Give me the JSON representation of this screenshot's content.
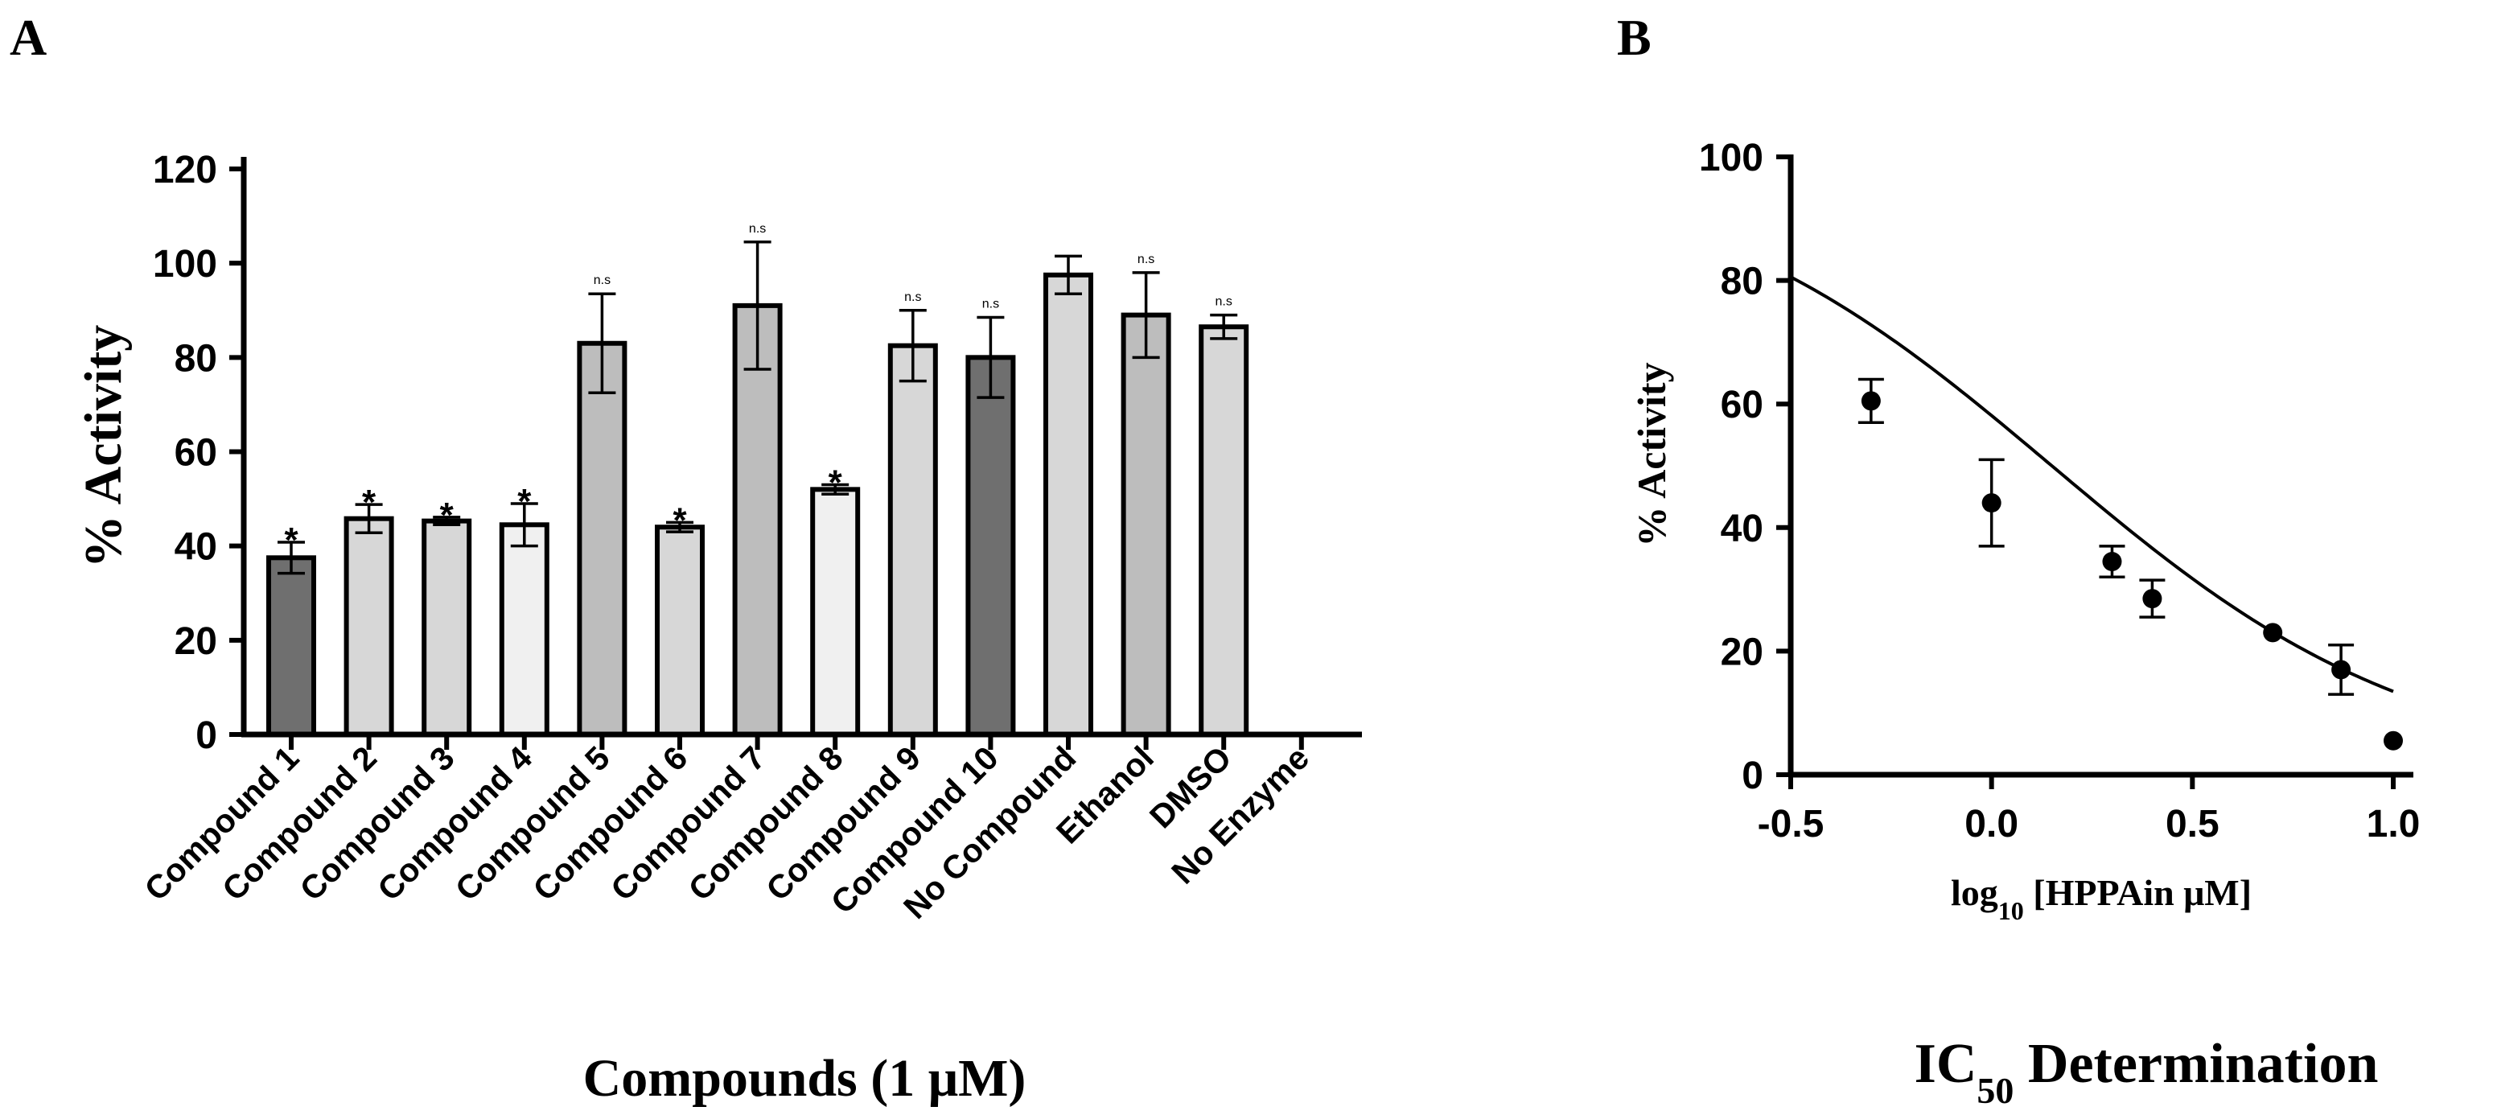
{
  "chart_data": [
    {
      "panel": "A",
      "type": "bar",
      "title": "",
      "xlabel": "Compounds (1 μM)",
      "ylabel": "% Activity",
      "ylim": [
        0,
        120
      ],
      "yticks": [
        0,
        20,
        40,
        60,
        80,
        100,
        120
      ],
      "categories": [
        "Compound 1",
        "Compound 2",
        "Compound 3",
        "Compound 4",
        "Compound 5",
        "Compound 6",
        "Compound 7",
        "Compound 8",
        "Compound 9",
        "Compound 10",
        "No Compound",
        "Ethanol",
        "DMSO",
        "No Enzyme"
      ],
      "values": [
        37.5,
        45.8,
        45.3,
        44.5,
        83,
        44,
        91,
        52,
        82.5,
        80,
        97.5,
        89,
        86.5,
        0
      ],
      "errors": [
        3.3,
        3,
        0.8,
        4.5,
        10.5,
        1,
        13.5,
        1,
        7.5,
        8.5,
        4,
        9,
        2.5,
        0
      ],
      "annotations": [
        "*",
        "*",
        "*",
        "*",
        "n.s",
        "*",
        "n.s",
        "*",
        "n.s",
        "n.s",
        "",
        "n.s",
        "n.s",
        ""
      ],
      "bar_colors": [
        "#6f6f6f",
        "#d7d7d7",
        "#d7d7d7",
        "#f0f0f0",
        "#bdbdbd",
        "#d7d7d7",
        "#bdbdbd",
        "#f0f0f0",
        "#d7d7d7",
        "#6f6f6f",
        "#d7d7d7",
        "#bdbdbd",
        "#d7d7d7",
        "#ffffff"
      ]
    },
    {
      "panel": "B",
      "type": "scatter",
      "title": "IC50 Determination",
      "title_main": "IC",
      "title_sub": "50",
      "title_rest": " Determination",
      "xlabel": "log10 [HPPAin μM]",
      "xlabel_main": "log",
      "xlabel_sub": "10",
      "xlabel_rest": " [HPPAin μM]",
      "ylabel": "% Activity",
      "xlim": [
        -0.5,
        1.0
      ],
      "ylim": [
        0,
        100
      ],
      "xticks": [
        "-0.5",
        "0.0",
        "0.5",
        "1.0"
      ],
      "yticks": [
        0,
        20,
        40,
        60,
        80,
        100
      ],
      "x": [
        -0.3,
        0.0,
        0.3,
        0.4,
        0.7,
        0.87,
        1.0
      ],
      "y": [
        60.5,
        44,
        34.5,
        28.5,
        23,
        17,
        5.5
      ],
      "errors": [
        3.5,
        7,
        2.5,
        3,
        0.5,
        4,
        0.5
      ],
      "fit": {
        "type": "sigmoid",
        "top": 100,
        "bottom": 0,
        "logIC50": 0.15,
        "hill": -0.95
      }
    }
  ],
  "panel_labels": [
    "A",
    "B"
  ]
}
